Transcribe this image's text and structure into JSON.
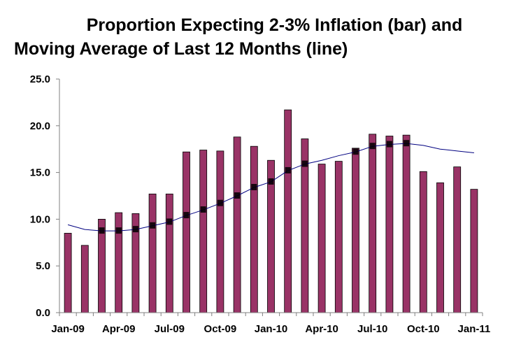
{
  "chart_data": {
    "type": "bar",
    "title_line1": "Proportion Expecting 2-3% Inflation (bar) and",
    "title_line2": "Moving Average of Last 12 Months (line)",
    "categories": [
      "Jan-09",
      "Feb-09",
      "Mar-09",
      "Apr-09",
      "May-09",
      "Jun-09",
      "Jul-09",
      "Aug-09",
      "Sep-09",
      "Oct-09",
      "Nov-09",
      "Dec-09",
      "Jan-10",
      "Feb-10",
      "Mar-10",
      "Apr-10",
      "May-10",
      "Jun-10",
      "Jul-10",
      "Aug-10",
      "Sep-10",
      "Oct-10",
      "Nov-10",
      "Dec-10",
      "Jan-11"
    ],
    "x_tick_labels": [
      "Jan-09",
      "Apr-09",
      "Jul-09",
      "Oct-09",
      "Jan-10",
      "Apr-10",
      "Jul-10",
      "Oct-10",
      "Jan-11"
    ],
    "ylim": [
      0,
      25
    ],
    "y_ticks": [
      "0.0",
      "5.0",
      "10.0",
      "15.0",
      "20.0",
      "25.0"
    ],
    "series": [
      {
        "type": "bar",
        "values": [
          8.5,
          7.2,
          10.0,
          10.7,
          10.6,
          12.7,
          12.7,
          17.2,
          17.4,
          17.3,
          18.8,
          17.8,
          16.3,
          21.7,
          18.6,
          15.9,
          16.2,
          17.6,
          19.1,
          18.9,
          19.0,
          15.1,
          13.9,
          15.6,
          13.2
        ]
      },
      {
        "type": "line",
        "values": [
          9.4,
          8.9,
          8.75,
          8.75,
          8.9,
          9.3,
          9.7,
          10.4,
          11.0,
          11.7,
          12.5,
          13.4,
          14.0,
          15.2,
          15.9,
          16.3,
          16.8,
          17.2,
          17.8,
          18.0,
          18.1,
          17.9,
          17.5,
          17.3,
          17.1
        ]
      }
    ],
    "colors": {
      "bar": "#993366",
      "line": "#000080",
      "axis": "#808080"
    },
    "grid": false,
    "legend": "none"
  }
}
